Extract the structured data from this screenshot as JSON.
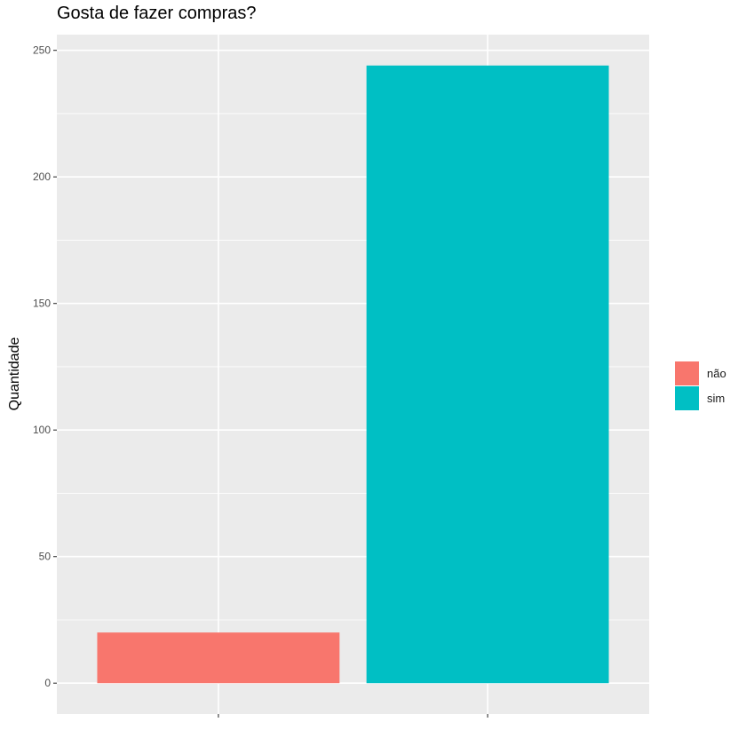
{
  "chart_data": {
    "type": "bar",
    "title": "Gosta de fazer compras?",
    "xlabel": "",
    "ylabel": "Quantidade",
    "categories": [
      "não",
      "sim"
    ],
    "values": [
      20,
      244
    ],
    "colors": [
      "#F8766D",
      "#00BFC4"
    ],
    "ylim": [
      -12.2,
      256.2
    ],
    "yticks": [
      0,
      50,
      100,
      150,
      200,
      250
    ],
    "grid": true,
    "legend_position": "right",
    "background": "#EBEBEB"
  },
  "legend": {
    "items": [
      {
        "label": "não",
        "color": "#F8766D"
      },
      {
        "label": "sim",
        "color": "#00BFC4"
      }
    ]
  }
}
